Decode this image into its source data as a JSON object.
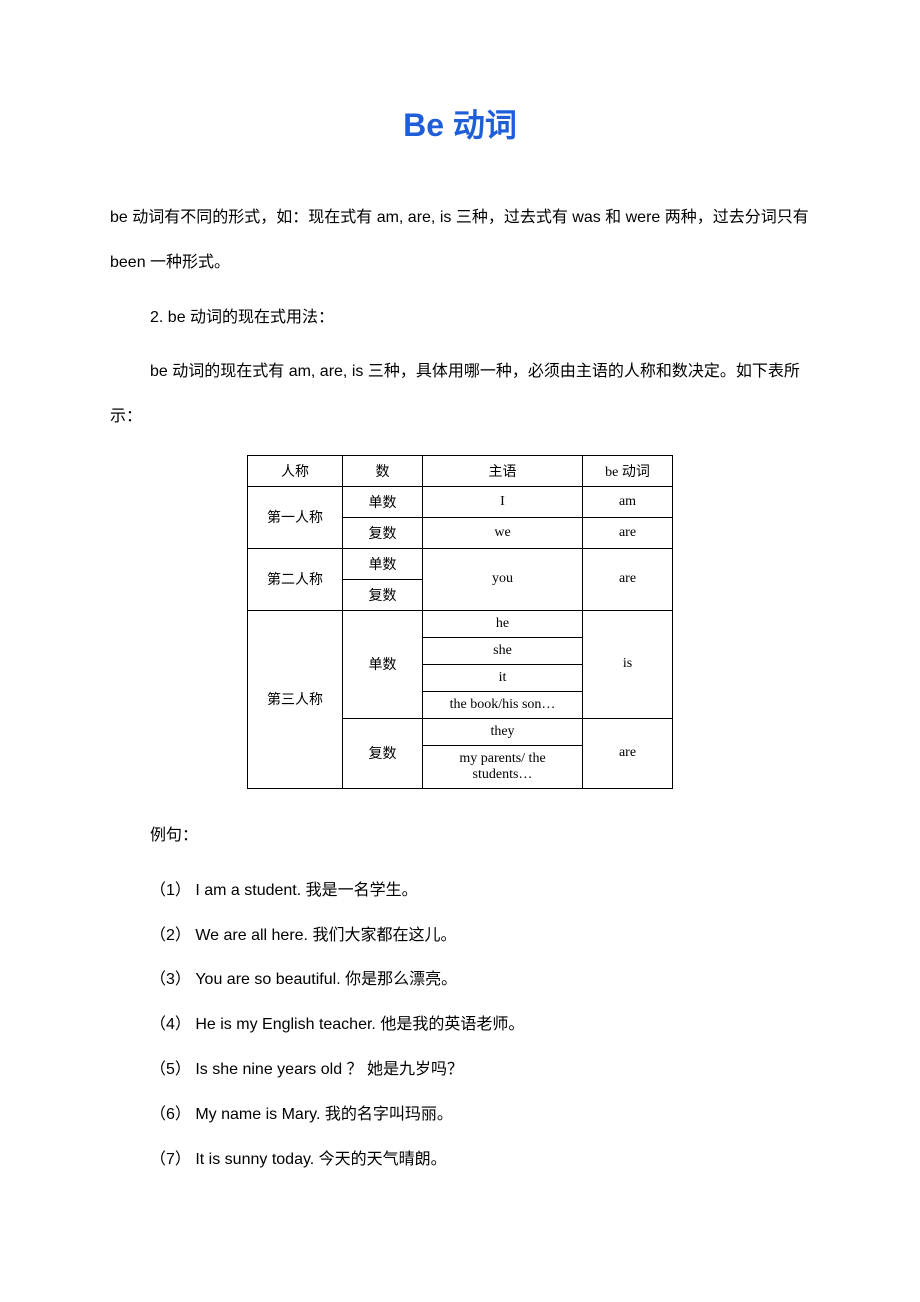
{
  "title": "Be 动词",
  "intro_para": "be 动词有不同的形式，如：现在式有 am, are, is 三种，过去式有 was 和 were 两种，过去分词只有 been 一种形式。",
  "section2_heading": "2. be 动词的现在式用法：",
  "section2_text": "be 动词的现在式有 am, are, is 三种，具体用哪一种，必须由主语的人称和数决定。如下表所示：",
  "table": {
    "headers": [
      "人称",
      "数",
      "主语",
      "be 动词"
    ],
    "rows": [
      {
        "person": "第一人称",
        "number": "单数",
        "subject": "I",
        "be": "am"
      },
      {
        "person": "",
        "number": "复数",
        "subject": "we",
        "be": "are"
      },
      {
        "person": "第二人称",
        "number": "单数",
        "subject": "you",
        "be": "are"
      },
      {
        "person": "",
        "number": "复数",
        "subject": "",
        "be": ""
      },
      {
        "person": "第三人称",
        "number": "单数",
        "subject": "he",
        "be": "is"
      },
      {
        "person": "",
        "number": "",
        "subject": "she",
        "be": ""
      },
      {
        "person": "",
        "number": "",
        "subject": "it",
        "be": ""
      },
      {
        "person": "",
        "number": "",
        "subject": "the book/his son…",
        "be": ""
      },
      {
        "person": "",
        "number": "复数",
        "subject": "they",
        "be": "are"
      },
      {
        "person": "",
        "number": "",
        "subject": "my parents/ the students…",
        "be": ""
      }
    ]
  },
  "examples_label": "例句：",
  "examples": [
    "（1） I am a student.  我是一名学生。",
    "（2） We are all here.  我们大家都在这儿。",
    "（3） You are so beautiful.  你是那么漂亮。",
    "（4） He is my English teacher.  他是我的英语老师。",
    "（5） Is she nine years old ？ 她是九岁吗？",
    "（6） My name is Mary.  我的名字叫玛丽。",
    "（7） It is sunny today.  今天的天气晴朗。"
  ],
  "colors": {
    "title": "#1e5fd9",
    "text": "#000000",
    "background": "#ffffff",
    "border": "#000000"
  }
}
